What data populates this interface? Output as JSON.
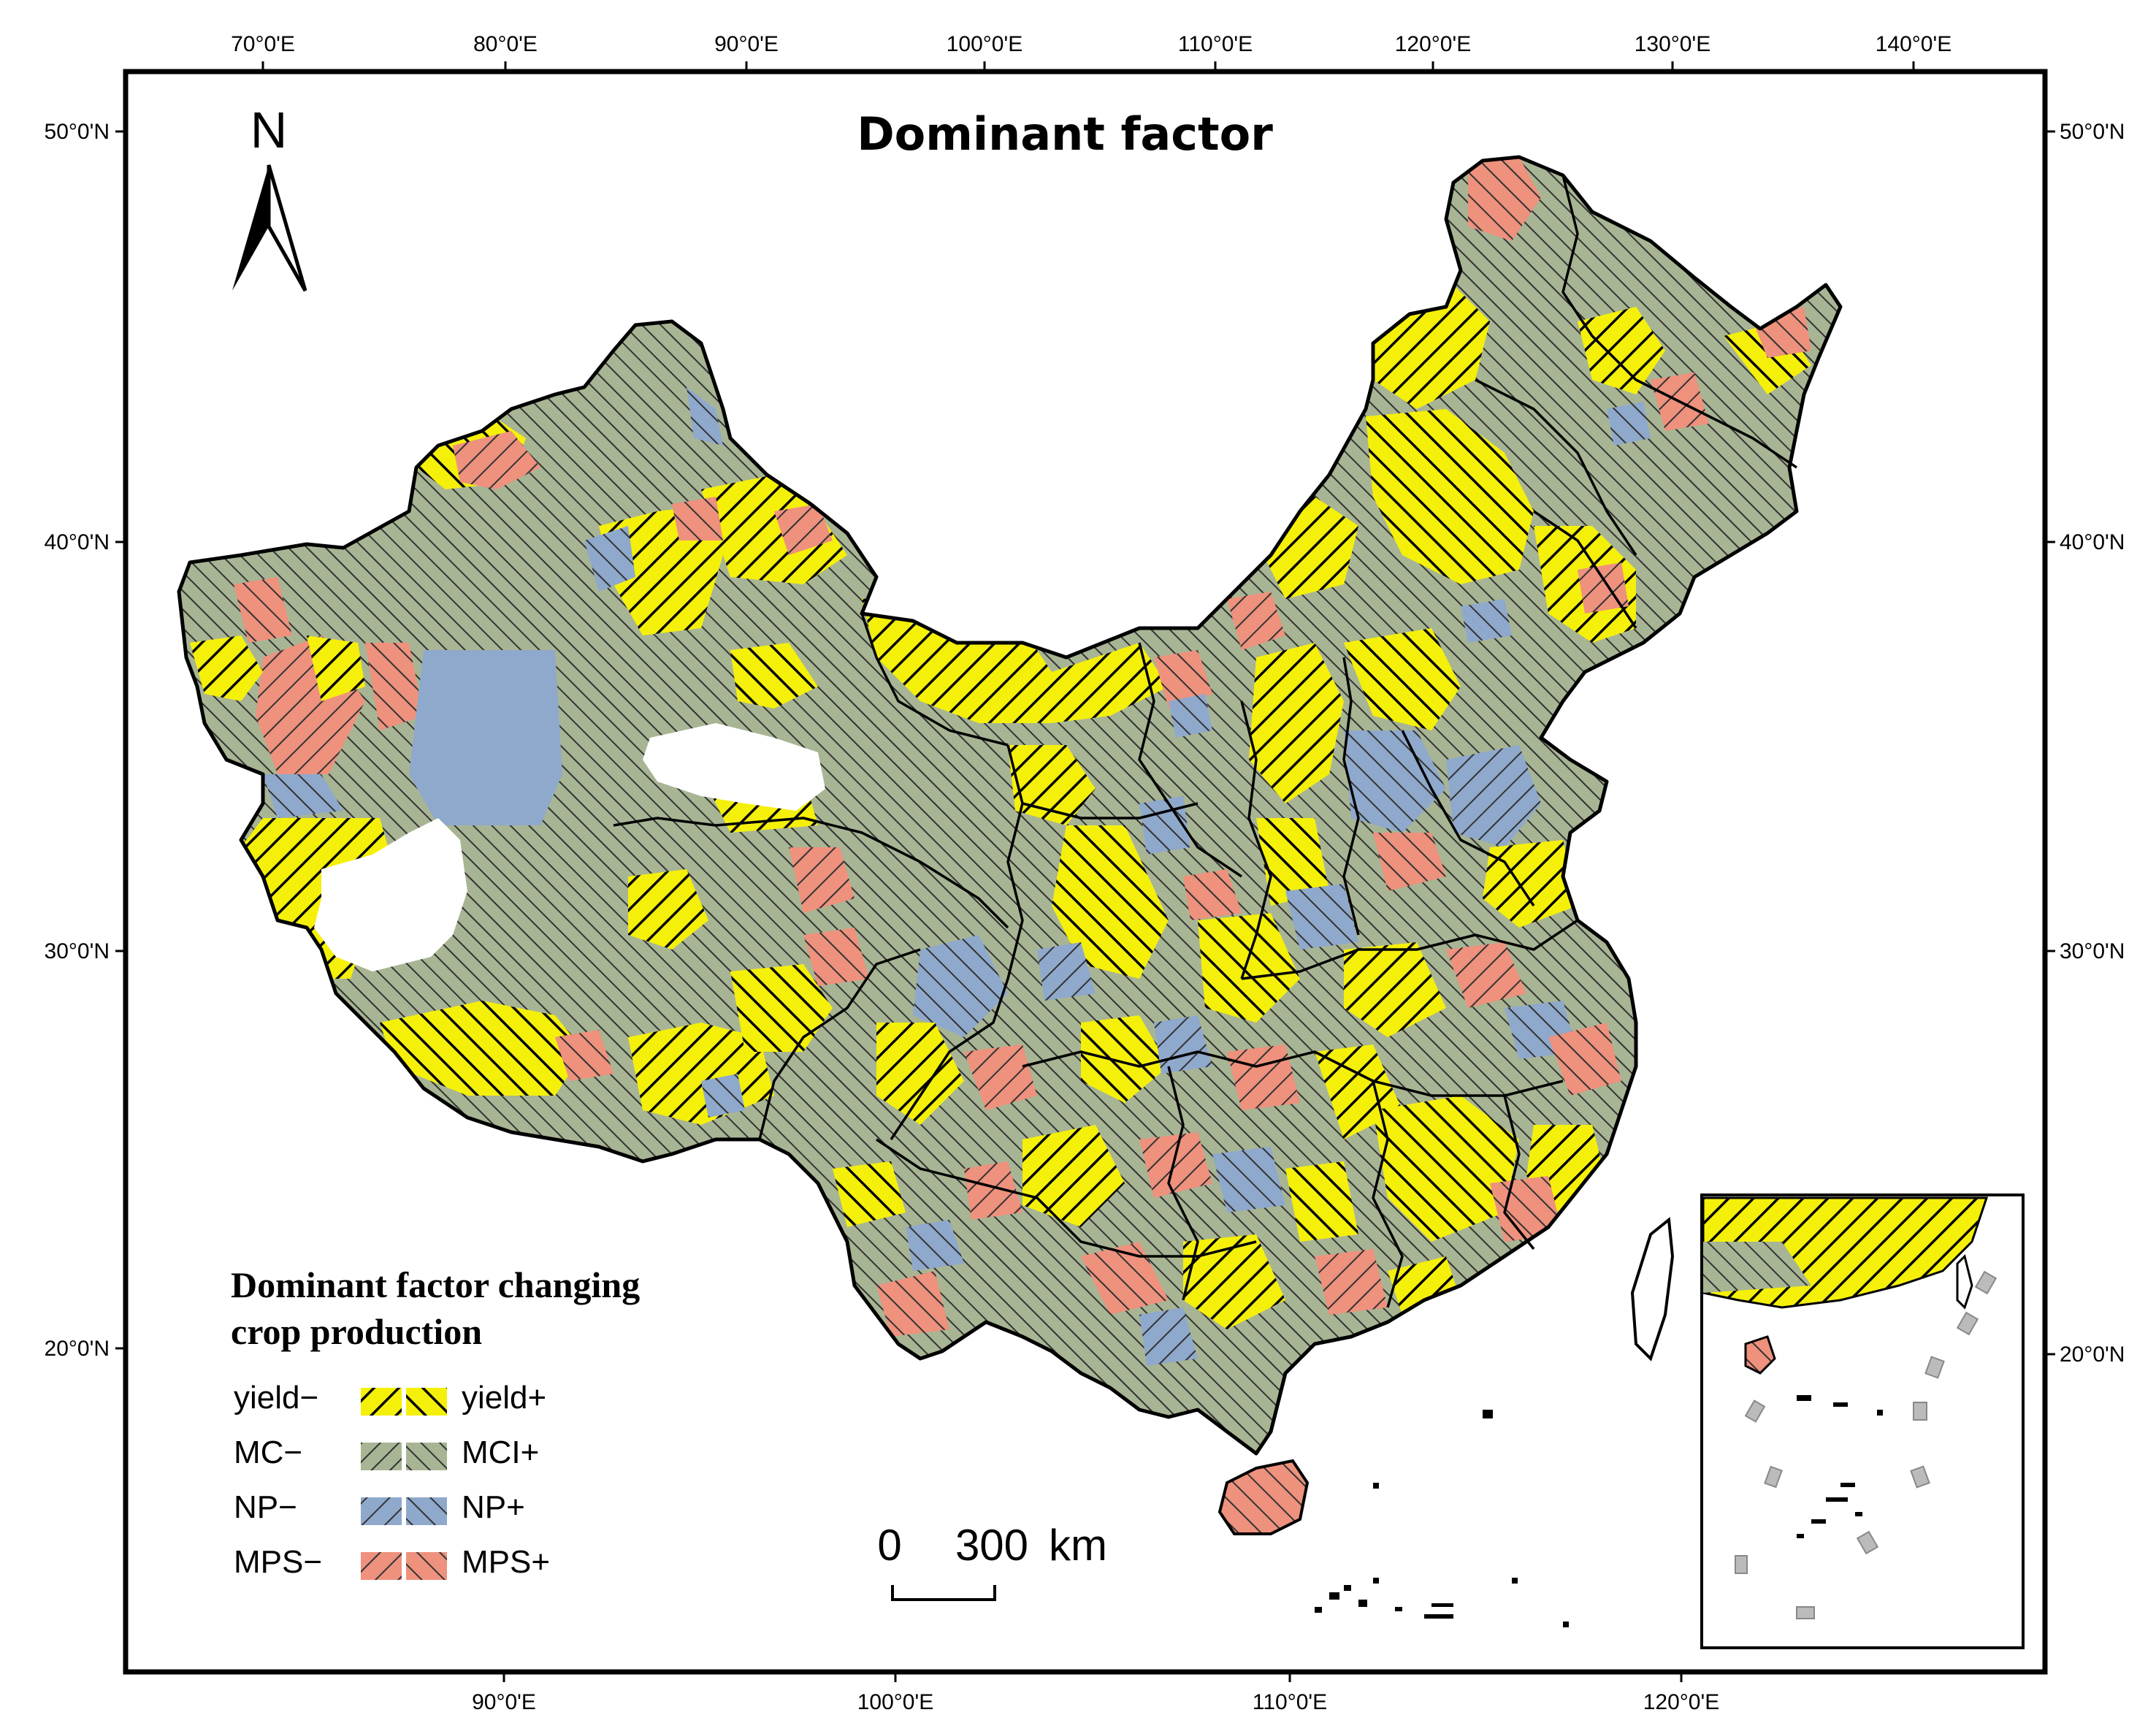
{
  "map": {
    "title": "Dominant factor",
    "top_lon_ticks": [
      "70°0'E",
      "80°0'E",
      "90°0'E",
      "100°0'E",
      "110°0'E",
      "120°0'E",
      "130°0'E",
      "140°0'E"
    ],
    "bottom_lon_ticks": [
      "90°0'E",
      "100°0'E",
      "110°0'E",
      "120°0'E"
    ],
    "left_lat_ticks": [
      "50°0'N",
      "40°0'N",
      "30°0'N",
      "20°0'N"
    ],
    "right_lat_ticks": [
      "50°0'N",
      "40°0'N",
      "30°0'N",
      "20°0'N"
    ],
    "north_arrow_label": "N",
    "scale_bar": {
      "start_label": "0",
      "end_label": "300",
      "unit": "km"
    }
  },
  "legend": {
    "title_line1": "Dominant factor changing",
    "title_line2": "crop production",
    "items": [
      {
        "neg_label": "yield−",
        "pos_label": "yield+",
        "color": "#f5f00a"
      },
      {
        "neg_label": "MC−",
        "pos_label": "MCI+",
        "color": "#a8b594"
      },
      {
        "neg_label": "NP−",
        "pos_label": "NP+",
        "color": "#8fa9cc"
      },
      {
        "neg_label": "MPS−",
        "pos_label": "MPS+",
        "color": "#ee917d"
      }
    ]
  },
  "colors": {
    "yield": "#f5f00a",
    "mci": "#a8b594",
    "np": "#8fa9cc",
    "mps": "#ee917d",
    "frame": "#000000"
  }
}
